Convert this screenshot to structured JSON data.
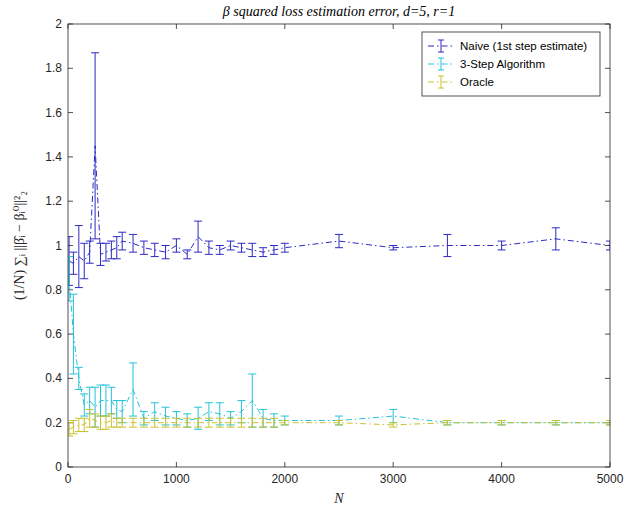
{
  "chart_data": {
    "type": "line",
    "title": "β squared loss estimation error, d=5, r=1",
    "x_label": "N",
    "y_label": "(1/N) ∑ᵢ ||β̂ᵢ − βᵢ⁰||²₂",
    "x": [
      10,
      50,
      100,
      150,
      200,
      250,
      300,
      350,
      400,
      450,
      500,
      600,
      700,
      800,
      900,
      1000,
      1100,
      1200,
      1300,
      1400,
      1500,
      1600,
      1700,
      1800,
      1900,
      2000,
      2500,
      3000,
      3500,
      4000,
      4500,
      5000
    ],
    "series": [
      {
        "name": "Naive (1st step estimate)",
        "color": "#2b2bc4",
        "line_style": "dashdot",
        "marker": "none",
        "values": [
          0.93,
          0.92,
          0.95,
          0.93,
          0.97,
          1.45,
          0.96,
          0.97,
          0.98,
          0.99,
          1.02,
          1.01,
          0.99,
          0.98,
          0.97,
          1.0,
          0.96,
          1.04,
          0.99,
          0.98,
          1.0,
          0.99,
          0.98,
          0.97,
          0.98,
          0.99,
          1.02,
          0.99,
          1.0,
          1.0,
          1.03,
          1.0
        ],
        "errors": [
          0.11,
          0.05,
          0.14,
          0.08,
          0.05,
          0.42,
          0.05,
          0.04,
          0.04,
          0.05,
          0.04,
          0.04,
          0.03,
          0.03,
          0.03,
          0.03,
          0.02,
          0.07,
          0.03,
          0.02,
          0.02,
          0.02,
          0.03,
          0.02,
          0.02,
          0.02,
          0.03,
          0.01,
          0.05,
          0.02,
          0.05,
          0.02
        ]
      },
      {
        "name": "3-Step Algorithm",
        "color": "#22c3d6",
        "line_style": "dashdot",
        "marker": "none",
        "values": [
          0.85,
          0.6,
          0.4,
          0.28,
          0.3,
          0.27,
          0.3,
          0.3,
          0.3,
          0.26,
          0.25,
          0.35,
          0.22,
          0.25,
          0.23,
          0.22,
          0.21,
          0.22,
          0.25,
          0.24,
          0.22,
          0.25,
          0.3,
          0.22,
          0.21,
          0.21,
          0.21,
          0.23,
          0.2,
          0.2,
          0.2,
          0.2
        ],
        "errors": [
          0.1,
          0.18,
          0.05,
          0.05,
          0.06,
          0.09,
          0.07,
          0.07,
          0.06,
          0.04,
          0.05,
          0.12,
          0.03,
          0.04,
          0.04,
          0.03,
          0.03,
          0.05,
          0.04,
          0.05,
          0.03,
          0.05,
          0.12,
          0.04,
          0.03,
          0.02,
          0.02,
          0.03,
          0.01,
          0.01,
          0.01,
          0.01
        ]
      },
      {
        "name": "Oracle",
        "color": "#c9c12e",
        "line_style": "dashdot",
        "marker": "none",
        "values": [
          0.17,
          0.18,
          0.19,
          0.19,
          0.22,
          0.21,
          0.2,
          0.2,
          0.21,
          0.2,
          0.2,
          0.2,
          0.2,
          0.2,
          0.2,
          0.2,
          0.2,
          0.2,
          0.2,
          0.2,
          0.2,
          0.2,
          0.2,
          0.2,
          0.2,
          0.2,
          0.2,
          0.19,
          0.2,
          0.2,
          0.2,
          0.2
        ],
        "errors": [
          0.03,
          0.03,
          0.03,
          0.03,
          0.04,
          0.03,
          0.03,
          0.03,
          0.03,
          0.02,
          0.02,
          0.02,
          0.02,
          0.02,
          0.02,
          0.02,
          0.02,
          0.02,
          0.02,
          0.02,
          0.02,
          0.02,
          0.02,
          0.02,
          0.02,
          0.01,
          0.01,
          0.01,
          0.01,
          0.01,
          0.01,
          0.01
        ]
      }
    ],
    "xlim": [
      0,
      5000
    ],
    "xticks": [
      0,
      1000,
      2000,
      3000,
      4000,
      5000
    ],
    "ylim": [
      0,
      2
    ],
    "yticks": [
      0,
      0.2,
      0.4,
      0.6,
      0.8,
      1,
      1.2,
      1.4,
      1.6,
      1.8,
      2
    ],
    "legend": "top-right",
    "grid": false
  }
}
